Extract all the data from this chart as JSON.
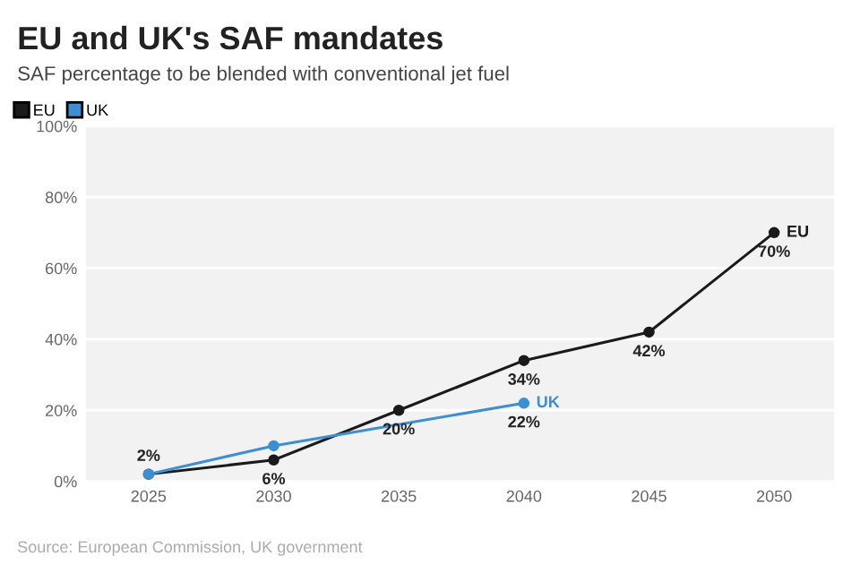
{
  "chart_data": {
    "type": "line",
    "title": "EU and UK's SAF mandates",
    "subtitle": "SAF percentage to be blended with conventional jet fuel",
    "annotations": [
      "Source: European Commission, UK government"
    ],
    "xlim": [
      2022.5,
      2052.4
    ],
    "xticks": [
      2025,
      2030,
      2035,
      2040,
      2045,
      2050
    ],
    "ylim": [
      0,
      100
    ],
    "yticks": [
      {
        "value": 0,
        "label": "0%"
      },
      {
        "value": 20,
        "label": "20%"
      },
      {
        "value": 40,
        "label": "40%"
      },
      {
        "value": 60,
        "label": "60%"
      },
      {
        "value": 80,
        "label": "80%"
      },
      {
        "value": 100,
        "label": "100%"
      }
    ],
    "grid": "y",
    "legend": "top left",
    "marker": "circle",
    "line_style": "solid",
    "series": [
      {
        "name": "EU",
        "color": "#1a1a1a",
        "x": [
          2025,
          2030,
          2035,
          2040,
          2045,
          2050
        ],
        "values": [
          2,
          6,
          20,
          34,
          42,
          70
        ],
        "value_labels": [
          "2%",
          "6%",
          "20%",
          "34%",
          "42%",
          "70%"
        ]
      },
      {
        "name": "UK",
        "color": "#3d8fd1",
        "x": [
          2025,
          2030,
          2040
        ],
        "values": [
          2,
          10,
          22
        ],
        "value_labels": [
          null,
          null,
          "22%"
        ]
      }
    ]
  }
}
